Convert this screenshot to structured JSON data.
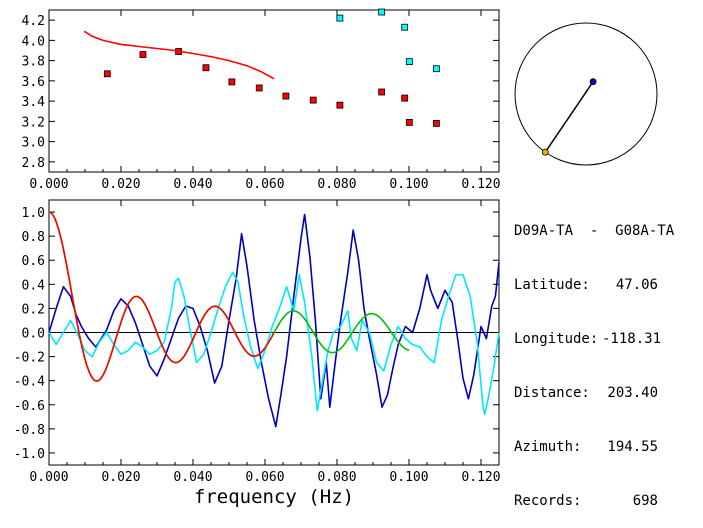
{
  "info": {
    "station_pair": "D09A-TA  -  G08A-TA",
    "latitude_label": "Latitude:",
    "latitude": "47.06",
    "longitude_label": "Longitude:",
    "longitude": "-118.31",
    "distance_label": "Distance:",
    "distance": "203.40",
    "azimuth_label": "Azimuth:",
    "azimuth": "194.55",
    "records_label": "Records:",
    "records": "698"
  },
  "chart_data": [
    {
      "type": "scatter",
      "title": "",
      "xlabel": "",
      "ylabel": "",
      "xlim": [
        0.0,
        0.125
      ],
      "ylim": [
        2.7,
        4.3
      ],
      "xticks": [
        "0.000",
        "0.020",
        "0.040",
        "0.060",
        "0.080",
        "0.100",
        "0.120"
      ],
      "yticks": [
        "2.8",
        "3.0",
        "3.2",
        "3.4",
        "3.6",
        "3.8",
        "4.0",
        "4.2"
      ],
      "series": [
        {
          "color": "#ff0000",
          "marker": "square",
          "points": [
            [
              0.0162,
              3.67
            ],
            [
              0.0261,
              3.86
            ],
            [
              0.036,
              3.89
            ],
            [
              0.0436,
              3.73
            ],
            [
              0.0508,
              3.59
            ],
            [
              0.0584,
              3.53
            ],
            [
              0.0658,
              3.45
            ],
            [
              0.0734,
              3.41
            ],
            [
              0.0808,
              3.36
            ],
            [
              0.0924,
              3.49
            ],
            [
              0.0988,
              3.43
            ],
            [
              0.1001,
              3.19
            ],
            [
              0.1076,
              3.18
            ]
          ]
        },
        {
          "color": "#00ffff",
          "marker": "square",
          "points": [
            [
              0.0808,
              4.22
            ],
            [
              0.0924,
              4.28
            ],
            [
              0.0988,
              4.13
            ],
            [
              0.1001,
              3.79
            ],
            [
              0.1076,
              3.72
            ]
          ]
        },
        {
          "color": "#ff0000",
          "marker": "line",
          "points": [
            [
              0.0098,
              4.09
            ],
            [
              0.012,
              4.04
            ],
            [
              0.015,
              4.0
            ],
            [
              0.02,
              3.96
            ],
            [
              0.025,
              3.94
            ],
            [
              0.03,
              3.92
            ],
            [
              0.035,
              3.9
            ],
            [
              0.04,
              3.87
            ],
            [
              0.045,
              3.84
            ],
            [
              0.05,
              3.8
            ],
            [
              0.055,
              3.75
            ],
            [
              0.059,
              3.69
            ],
            [
              0.0625,
              3.62
            ]
          ]
        }
      ]
    },
    {
      "type": "line",
      "title": "",
      "xlabel": "frequency (Hz)",
      "ylabel": "",
      "xlim": [
        0.0,
        0.125
      ],
      "ylim": [
        -1.1,
        1.1
      ],
      "xticks": [
        "0.000",
        "0.020",
        "0.040",
        "0.060",
        "0.080",
        "0.100",
        "0.120"
      ],
      "yticks": [
        "1.0",
        "0.8",
        "0.6",
        "0.4",
        "0.2",
        "0.0",
        "-0.2",
        "-0.4",
        "-0.6",
        "-0.8",
        "-1.0"
      ],
      "series": [
        {
          "color": "#0000c0",
          "points": [
            [
              0.0,
              0.0
            ],
            [
              0.002,
              0.2
            ],
            [
              0.004,
              0.38
            ],
            [
              0.006,
              0.3
            ],
            [
              0.0075,
              0.15
            ],
            [
              0.009,
              0.05
            ],
            [
              0.011,
              -0.05
            ],
            [
              0.013,
              -0.12
            ],
            [
              0.0145,
              -0.05
            ],
            [
              0.016,
              0.02
            ],
            [
              0.018,
              0.18
            ],
            [
              0.02,
              0.28
            ],
            [
              0.022,
              0.22
            ],
            [
              0.024,
              0.08
            ],
            [
              0.026,
              -0.1
            ],
            [
              0.028,
              -0.28
            ],
            [
              0.03,
              -0.36
            ],
            [
              0.032,
              -0.22
            ],
            [
              0.034,
              -0.05
            ],
            [
              0.036,
              0.12
            ],
            [
              0.038,
              0.22
            ],
            [
              0.04,
              0.2
            ],
            [
              0.042,
              0.05
            ],
            [
              0.044,
              -0.15
            ],
            [
              0.046,
              -0.42
            ],
            [
              0.048,
              -0.28
            ],
            [
              0.05,
              0.1
            ],
            [
              0.052,
              0.45
            ],
            [
              0.0535,
              0.82
            ],
            [
              0.055,
              0.55
            ],
            [
              0.057,
              0.1
            ],
            [
              0.059,
              -0.25
            ],
            [
              0.061,
              -0.55
            ],
            [
              0.063,
              -0.78
            ],
            [
              0.0645,
              -0.5
            ],
            [
              0.066,
              -0.2
            ],
            [
              0.068,
              0.3
            ],
            [
              0.07,
              0.78
            ],
            [
              0.071,
              0.98
            ],
            [
              0.0725,
              0.62
            ],
            [
              0.074,
              0.1
            ],
            [
              0.0755,
              -0.55
            ],
            [
              0.077,
              -0.25
            ],
            [
              0.078,
              -0.62
            ],
            [
              0.0795,
              -0.25
            ],
            [
              0.081,
              0.1
            ],
            [
              0.083,
              0.5
            ],
            [
              0.0845,
              0.85
            ],
            [
              0.086,
              0.6
            ],
            [
              0.0875,
              0.2
            ],
            [
              0.089,
              -0.05
            ],
            [
              0.091,
              -0.35
            ],
            [
              0.0925,
              -0.62
            ],
            [
              0.094,
              -0.52
            ],
            [
              0.0955,
              -0.3
            ],
            [
              0.097,
              -0.1
            ],
            [
              0.099,
              0.05
            ],
            [
              0.101,
              0.0
            ],
            [
              0.103,
              0.2
            ],
            [
              0.105,
              0.48
            ],
            [
              0.106,
              0.35
            ],
            [
              0.108,
              0.2
            ],
            [
              0.11,
              0.35
            ],
            [
              0.112,
              0.25
            ],
            [
              0.1135,
              -0.05
            ],
            [
              0.115,
              -0.38
            ],
            [
              0.1165,
              -0.55
            ],
            [
              0.118,
              -0.35
            ],
            [
              0.12,
              0.05
            ],
            [
              0.1215,
              -0.05
            ],
            [
              0.123,
              0.22
            ],
            [
              0.124,
              0.3
            ],
            [
              0.125,
              0.58
            ]
          ]
        },
        {
          "color": "#00e8ff",
          "points": [
            [
              0.0,
              0.0
            ],
            [
              0.002,
              -0.1
            ],
            [
              0.004,
              0.0
            ],
            [
              0.006,
              0.1
            ],
            [
              0.008,
              -0.02
            ],
            [
              0.01,
              -0.15
            ],
            [
              0.012,
              -0.2
            ],
            [
              0.014,
              -0.08
            ],
            [
              0.016,
              0.0
            ],
            [
              0.018,
              -0.1
            ],
            [
              0.02,
              -0.18
            ],
            [
              0.022,
              -0.15
            ],
            [
              0.024,
              -0.08
            ],
            [
              0.026,
              -0.12
            ],
            [
              0.028,
              -0.18
            ],
            [
              0.03,
              -0.15
            ],
            [
              0.032,
              -0.08
            ],
            [
              0.034,
              0.2
            ],
            [
              0.035,
              0.42
            ],
            [
              0.036,
              0.45
            ],
            [
              0.0375,
              0.3
            ],
            [
              0.039,
              0.05
            ],
            [
              0.041,
              -0.25
            ],
            [
              0.043,
              -0.18
            ],
            [
              0.045,
              0.0
            ],
            [
              0.047,
              0.2
            ],
            [
              0.049,
              0.38
            ],
            [
              0.051,
              0.5
            ],
            [
              0.0525,
              0.42
            ],
            [
              0.054,
              0.15
            ],
            [
              0.056,
              -0.12
            ],
            [
              0.058,
              -0.3
            ],
            [
              0.06,
              -0.15
            ],
            [
              0.062,
              0.05
            ],
            [
              0.064,
              0.2
            ],
            [
              0.066,
              0.38
            ],
            [
              0.068,
              0.18
            ],
            [
              0.0695,
              0.48
            ],
            [
              0.071,
              0.25
            ],
            [
              0.073,
              -0.2
            ],
            [
              0.0745,
              -0.65
            ],
            [
              0.076,
              -0.4
            ],
            [
              0.0775,
              -0.15
            ],
            [
              0.079,
              0.0
            ],
            [
              0.081,
              0.05
            ],
            [
              0.083,
              0.18
            ],
            [
              0.084,
              -0.05
            ],
            [
              0.0855,
              -0.15
            ],
            [
              0.087,
              0.1
            ],
            [
              0.089,
              0.0
            ],
            [
              0.091,
              -0.25
            ],
            [
              0.093,
              -0.32
            ],
            [
              0.095,
              -0.1
            ],
            [
              0.097,
              0.05
            ],
            [
              0.099,
              -0.05
            ],
            [
              0.101,
              -0.1
            ],
            [
              0.103,
              -0.12
            ],
            [
              0.105,
              -0.2
            ],
            [
              0.107,
              -0.25
            ],
            [
              0.109,
              0.1
            ],
            [
              0.111,
              0.3
            ],
            [
              0.113,
              0.48
            ],
            [
              0.115,
              0.48
            ],
            [
              0.117,
              0.3
            ],
            [
              0.119,
              -0.1
            ],
            [
              0.1205,
              -0.6
            ],
            [
              0.121,
              -0.68
            ],
            [
              0.122,
              -0.55
            ],
            [
              0.1235,
              -0.3
            ],
            [
              0.125,
              0.0
            ]
          ]
        },
        {
          "color": "#00c000",
          "function": "bessel_j0",
          "x_start": 0.0,
          "x_end": 0.1,
          "arg_per_hz": 289
        },
        {
          "color": "#ff0000",
          "function": "bessel_j0",
          "x_start": 0.0,
          "x_end": 0.0625,
          "arg_per_hz": 289
        }
      ]
    },
    {
      "type": "map",
      "title": "",
      "outer_circle": true,
      "points": [
        {
          "name": "D09A-TA",
          "color": "#0000c0",
          "angle_deg": 60,
          "radius_frac": 0.2
        },
        {
          "name": "G08A-TA",
          "color": "#ffaa00",
          "angle_deg": 235,
          "radius_frac": 1.0
        }
      ]
    }
  ]
}
